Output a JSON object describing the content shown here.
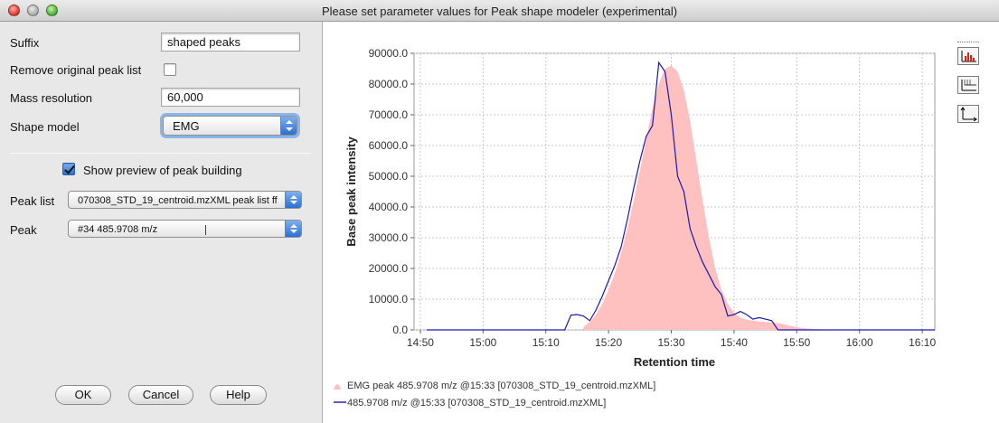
{
  "window": {
    "title": "Please set parameter values for Peak shape modeler (experimental)"
  },
  "form": {
    "suffix_label": "Suffix",
    "suffix_value": "shaped peaks",
    "remove_label": "Remove original peak list",
    "remove_checked": false,
    "resolution_label": "Mass resolution",
    "resolution_value": "60,000",
    "shape_label": "Shape model",
    "shape_value": "EMG",
    "preview_label": "Show preview of peak building",
    "preview_checked": true,
    "peaklist_label": "Peak list",
    "peaklist_value": "070308_STD_19_centroid.mzXML peak list ff",
    "peak_label": "Peak",
    "peak_value": "#34 485.9708 m/z"
  },
  "buttons": {
    "ok": "OK",
    "cancel": "Cancel",
    "help": "Help"
  },
  "toolbar": {
    "zoom_icon": "chart-bars-icon",
    "label_icon": "data-label-icon",
    "axes_icon": "axes-icon"
  },
  "chart_data": {
    "type": "area",
    "xlabel": "Retention time",
    "ylabel": "Base peak intensity",
    "x_ticks": [
      "14:50",
      "15:00",
      "15:10",
      "15:20",
      "15:30",
      "15:40",
      "15:50",
      "16:00",
      "16:10"
    ],
    "y_ticks": [
      "0.0",
      "10000.0",
      "20000.0",
      "30000.0",
      "40000.0",
      "50000.0",
      "60000.0",
      "70000.0",
      "80000.0",
      "90000.0"
    ],
    "xlim_minutes": [
      889.0,
      972.0
    ],
    "ylim": [
      0,
      90000
    ],
    "grid": true,
    "legend_position": "bottom",
    "series": [
      {
        "name": "EMG peak 485.9708 m/z @15:33 [070308_STD_19_centroid.mzXML]",
        "color": "#ffc0c0",
        "style": "filled-area",
        "x": [
          916.0,
          917.0,
          918.0,
          919.0,
          920.0,
          921.0,
          922.0,
          923.0,
          924.0,
          925.0,
          926.0,
          927.0,
          928.0,
          929.0,
          930.0,
          931.0,
          932.0,
          933.0,
          934.0,
          935.0,
          936.0,
          937.0,
          938.0,
          939.0,
          940.0,
          941.0,
          942.0,
          943.0,
          944.0,
          945.0,
          946.0,
          947.0,
          948.0,
          949.0,
          950.0,
          951.0,
          952.0,
          953.0,
          954.0,
          955.0
        ],
        "y": [
          1000,
          2500,
          5000,
          8500,
          13000,
          18500,
          25000,
          33000,
          42000,
          52000,
          62000,
          72000,
          80000,
          85000,
          86000,
          84000,
          78000,
          68000,
          55000,
          42000,
          30000,
          20000,
          13000,
          8500,
          5500,
          4000,
          3300,
          3000,
          2800,
          2600,
          2400,
          2200,
          1800,
          1300,
          900,
          600,
          400,
          250,
          150,
          0
        ]
      },
      {
        "name": "485.9708 m/z @15:33 [070308_STD_19_centroid.mzXML]",
        "color": "#1a1aa8",
        "style": "line",
        "x": [
          891.0,
          902.0,
          913.0,
          914.0,
          915.0,
          916.0,
          917.0,
          918.0,
          919.0,
          920.0,
          921.0,
          922.0,
          923.0,
          924.0,
          925.0,
          926.0,
          927.0,
          928.0,
          929.0,
          930.0,
          931.0,
          932.0,
          933.0,
          934.0,
          935.0,
          936.0,
          937.0,
          938.0,
          939.0,
          940.0,
          941.0,
          942.0,
          943.0,
          944.0,
          945.0,
          946.0,
          947.0,
          948.0,
          949.0,
          950.0,
          951.0,
          952.0,
          953.0,
          954.0,
          955.0,
          956.0,
          957.0,
          958.0,
          959.0,
          960.0,
          972.0
        ],
        "y": [
          0,
          0,
          0,
          4800,
          5000,
          4500,
          3000,
          6500,
          11000,
          16000,
          21000,
          27000,
          36000,
          46000,
          55000,
          63000,
          66500,
          87000,
          84000,
          70000,
          50000,
          45000,
          33000,
          27000,
          22000,
          18000,
          14000,
          11500,
          4500,
          5000,
          6000,
          5000,
          3500,
          4000,
          3500,
          3000,
          0,
          0,
          0,
          0,
          0,
          0,
          0,
          0,
          0,
          0,
          0,
          0,
          0,
          0,
          0
        ]
      }
    ]
  }
}
